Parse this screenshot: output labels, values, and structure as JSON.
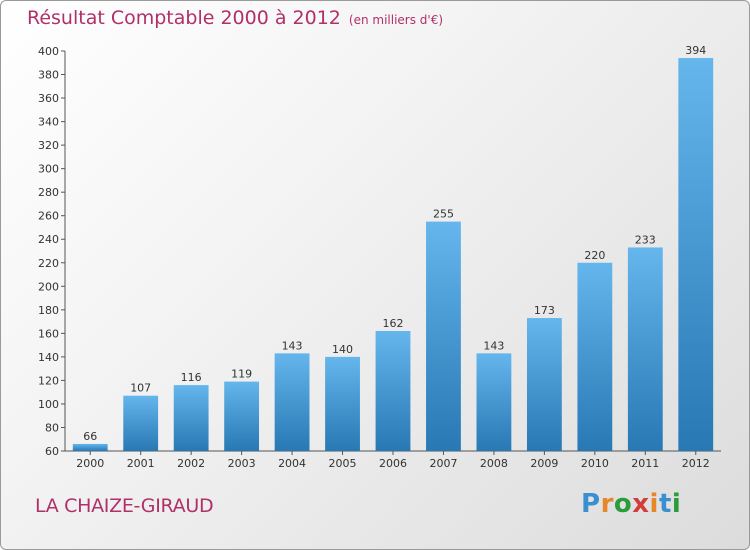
{
  "header": {
    "title": "Résultat Comptable 2000 à 2012",
    "subtitle": "(en milliers d'€)"
  },
  "footer": {
    "place": "LA CHAIZE-GIRAUD",
    "logo_text": "Proxiti"
  },
  "colors": {
    "title": "#b0306a",
    "bar_top": "#64b6ec",
    "bar_bottom": "#2878b4",
    "logo": [
      "#3a8fd0",
      "#e8862a",
      "#2a9c3a",
      "#d43c3c",
      "#e8862a",
      "#3a8fd0",
      "#2a9c3a"
    ]
  },
  "chart_data": {
    "type": "bar",
    "title": "Résultat Comptable 2000 à 2012",
    "subtitle": "(en milliers d'€)",
    "categories": [
      "2000",
      "2001",
      "2002",
      "2003",
      "2004",
      "2005",
      "2006",
      "2007",
      "2008",
      "2009",
      "2010",
      "2011",
      "2012"
    ],
    "values": [
      66,
      107,
      116,
      119,
      143,
      140,
      162,
      255,
      143,
      173,
      220,
      233,
      394
    ],
    "ylim": [
      60,
      400
    ],
    "yticks": [
      60,
      80,
      100,
      120,
      140,
      160,
      180,
      200,
      220,
      240,
      260,
      280,
      300,
      320,
      340,
      360,
      380,
      400
    ],
    "grid": false,
    "legend": "none",
    "data_labels": true
  }
}
